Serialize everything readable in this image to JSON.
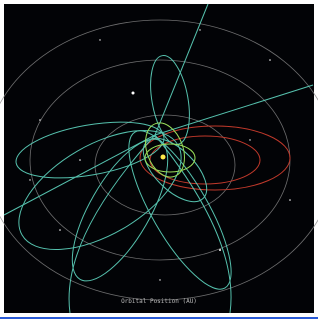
{
  "caption": "Orbital Position (AU)"
}
